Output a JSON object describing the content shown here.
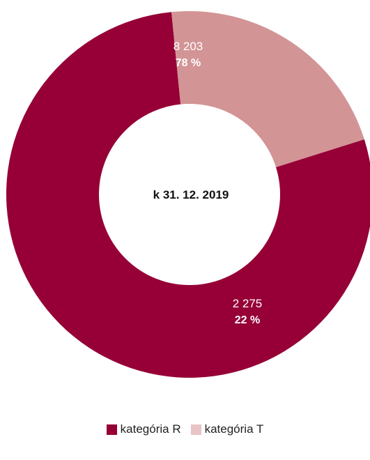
{
  "chart_data": {
    "type": "pie",
    "center_label": "k 31. 12. 2019",
    "slices": [
      {
        "name": "kategória R",
        "value": 8203,
        "value_label": "8 203",
        "percent_label": "78 %",
        "color": "#960036"
      },
      {
        "name": "kategória T",
        "value": 2275,
        "value_label": "2 275",
        "percent_label": "22 %",
        "color": "#d39496"
      }
    ],
    "legend": {
      "placement": "bottom-center",
      "items": [
        {
          "label": "kategória R",
          "color": "#960036"
        },
        {
          "label": "kategória T",
          "color": "#e8c4c6"
        }
      ]
    }
  }
}
